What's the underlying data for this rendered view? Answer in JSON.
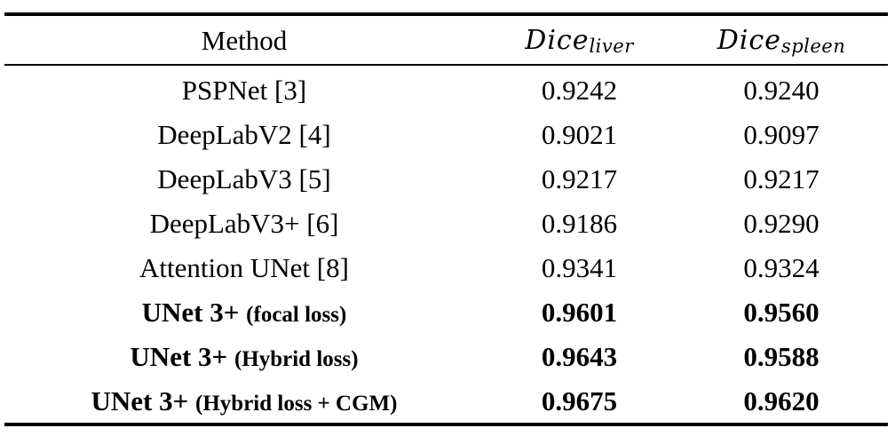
{
  "table": {
    "headers": {
      "method": "Method",
      "liver_base": "Dice",
      "liver_sub": "liver",
      "spleen_base": "Dice",
      "spleen_sub": "spleen"
    },
    "rows": [
      {
        "method": "PSPNet [3]",
        "method_note": "",
        "liver": "0.9242",
        "spleen": "0.9240",
        "bold": false
      },
      {
        "method": "DeepLabV2 [4]",
        "method_note": "",
        "liver": "0.9021",
        "spleen": "0.9097",
        "bold": false
      },
      {
        "method": "DeepLabV3 [5]",
        "method_note": "",
        "liver": "0.9217",
        "spleen": "0.9217",
        "bold": false
      },
      {
        "method": "DeepLabV3+ [6]",
        "method_note": "",
        "liver": "0.9186",
        "spleen": "0.9290",
        "bold": false
      },
      {
        "method": "Attention UNet [8]",
        "method_note": "",
        "liver": "0.9341",
        "spleen": "0.9324",
        "bold": false
      },
      {
        "method": "UNet 3+",
        "method_note": "(focal loss)",
        "liver": "0.9601",
        "spleen": "0.9560",
        "bold": true
      },
      {
        "method": "UNet 3+",
        "method_note": "(Hybrid loss)",
        "liver": "0.9643",
        "spleen": "0.9588",
        "bold": true
      },
      {
        "method": "UNet 3+",
        "method_note": "(Hybrid loss + CGM)",
        "liver": "0.9675",
        "spleen": "0.9620",
        "bold": true
      }
    ]
  }
}
